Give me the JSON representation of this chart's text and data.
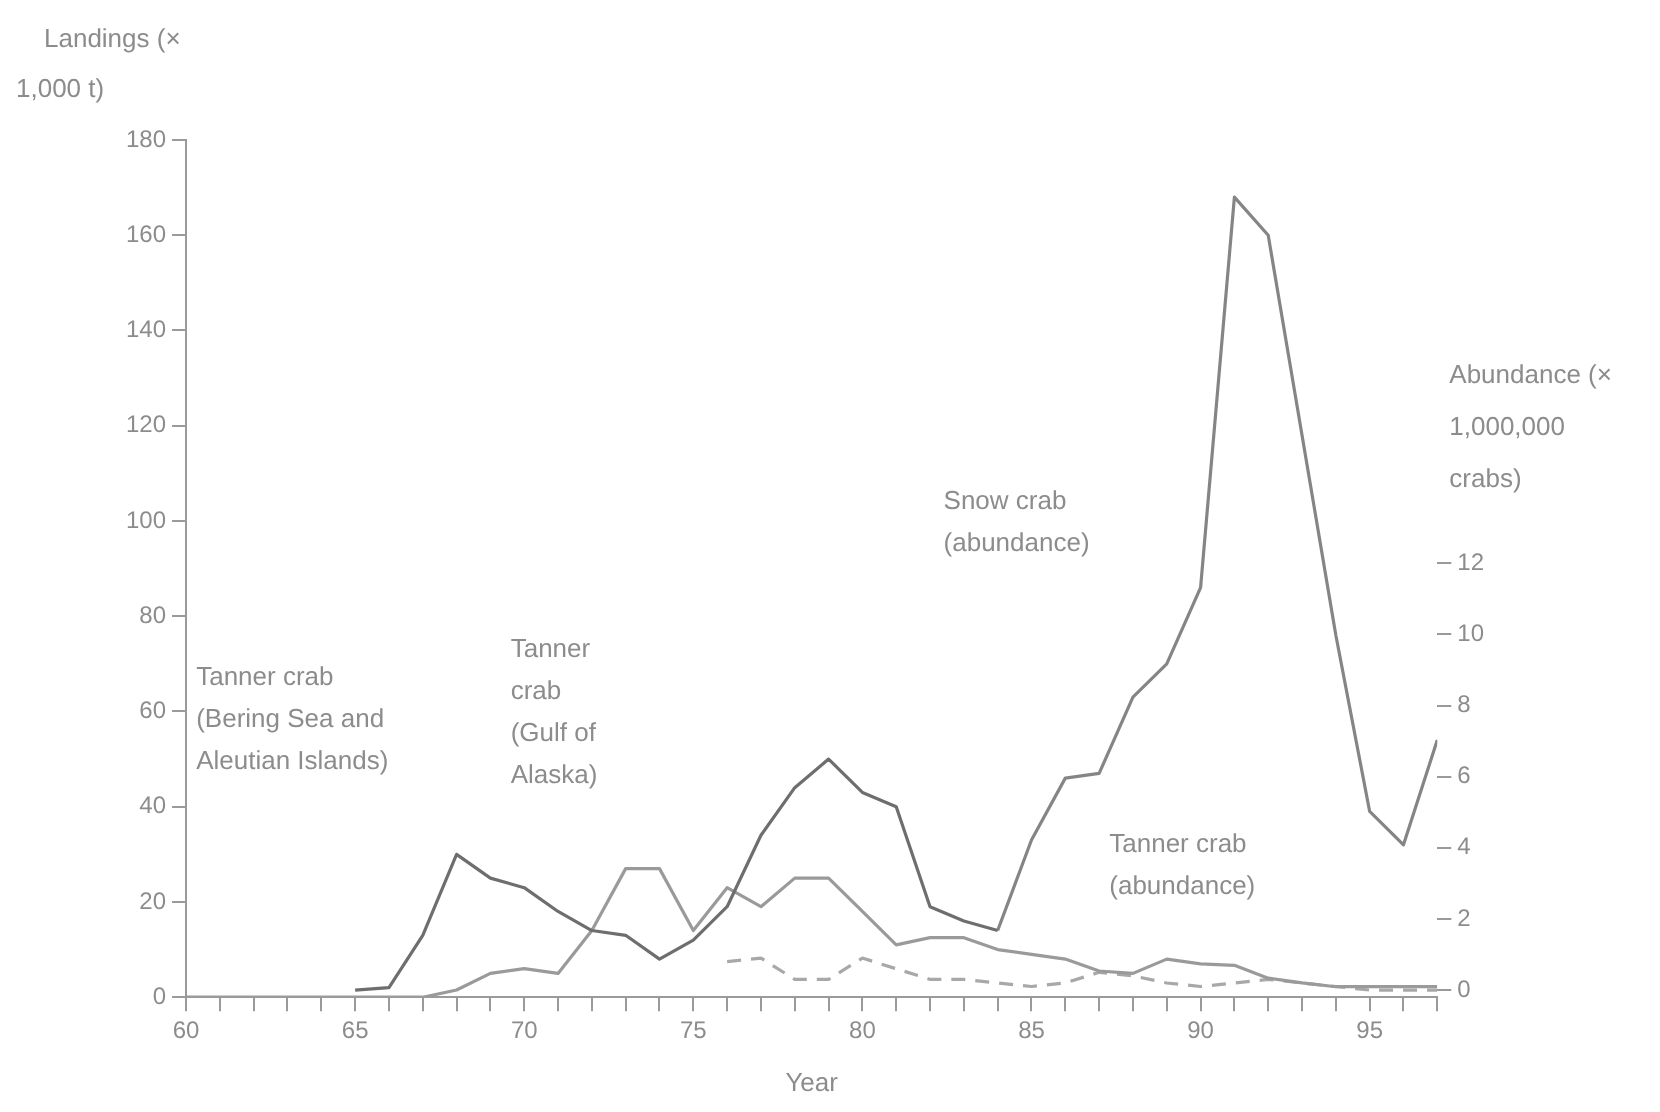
{
  "chart_data": {
    "type": "line",
    "xlabel": "Year",
    "ylabel": "Landings (× 1,000 t)",
    "y2label": "Abundance (× 1,000,000 crabs)",
    "xlim": [
      60,
      97
    ],
    "xticks": [
      60,
      {
        "value": 61,
        "label": null
      },
      {
        "value": 62,
        "label": null
      },
      {
        "value": 63,
        "label": null
      },
      {
        "value": 64,
        "label": null
      },
      65,
      {
        "value": 66,
        "label": null
      },
      {
        "value": 67,
        "label": null
      },
      {
        "value": 68,
        "label": null
      },
      {
        "value": 69,
        "label": null
      },
      70,
      {
        "value": 71,
        "label": null
      },
      {
        "value": 72,
        "label": null
      },
      {
        "value": 73,
        "label": null
      },
      {
        "value": 74,
        "label": null
      },
      75,
      {
        "value": 76,
        "label": null
      },
      {
        "value": 77,
        "label": null
      },
      {
        "value": 78,
        "label": null
      },
      {
        "value": 79,
        "label": null
      },
      80,
      {
        "value": 81,
        "label": null
      },
      {
        "value": 82,
        "label": null
      },
      {
        "value": 83,
        "label": null
      },
      {
        "value": 84,
        "label": null
      },
      85,
      {
        "value": 86,
        "label": null
      },
      {
        "value": 87,
        "label": null
      },
      {
        "value": 88,
        "label": null
      },
      {
        "value": 89,
        "label": null
      },
      90,
      {
        "value": 91,
        "label": null
      },
      {
        "value": 92,
        "label": null
      },
      {
        "value": 93,
        "label": null
      },
      {
        "value": 94,
        "label": null
      },
      95,
      {
        "value": 96,
        "label": null
      },
      {
        "value": 97,
        "label": null
      }
    ],
    "ylim": [
      0,
      180
    ],
    "yticks": [
      0,
      20,
      40,
      60,
      80,
      100,
      120,
      140,
      160,
      180
    ],
    "y2lim": [
      -0.2,
      23.9
    ],
    "y2ticks": [
      0,
      2,
      4,
      6,
      8,
      10,
      12
    ],
    "grid": false,
    "legend": false,
    "marker": "none",
    "series": [
      {
        "color": "#6e6e6e",
        "x": [
          65,
          66,
          67,
          68,
          69,
          70,
          71,
          72,
          73,
          74,
          75,
          76,
          77,
          78,
          79,
          80,
          81,
          82,
          83,
          84
        ],
        "values": [
          1.5,
          2,
          13,
          30,
          25,
          23,
          18,
          14,
          13,
          8,
          12,
          19,
          34,
          44,
          50,
          43,
          40,
          19,
          16,
          14
        ]
      },
      {
        "color": "#858585",
        "x": [
          84,
          85,
          86,
          87,
          88,
          89,
          90,
          91,
          92,
          93,
          94,
          95,
          96,
          97
        ],
        "values": [
          14,
          33,
          46,
          47,
          63,
          70,
          86,
          168,
          160,
          118,
          76,
          39,
          32,
          54
        ]
      },
      {
        "color": "#9a9a9a",
        "x": [
          60,
          61,
          62,
          63,
          64,
          65,
          66,
          67,
          68,
          69,
          70,
          71,
          72,
          73,
          74,
          75,
          76,
          77,
          78,
          79,
          80,
          81,
          82,
          83,
          84,
          85,
          86,
          87,
          88,
          89,
          90,
          91,
          92,
          93,
          94,
          95,
          96,
          97
        ],
        "values": [
          0,
          0,
          0,
          0,
          0,
          0,
          0,
          0,
          1.5,
          5,
          6,
          5,
          14,
          27,
          27,
          14,
          23,
          19,
          25,
          25,
          18,
          11,
          12.5,
          12.5,
          10,
          9,
          8,
          5.5,
          5,
          8,
          7,
          6.7,
          4,
          3,
          2.2,
          2.2,
          2.2,
          2.2
        ]
      },
      {
        "color": "#a8a8a8",
        "axis": "y2",
        "line_style": "dashed",
        "x": [
          76,
          77,
          78,
          79,
          80,
          81,
          82,
          83,
          84,
          85,
          86,
          87,
          88,
          89,
          90,
          91,
          92,
          93,
          94,
          95,
          96,
          97
        ],
        "values": [
          0.8,
          0.9,
          0.3,
          0.3,
          0.9,
          0.6,
          0.3,
          0.3,
          0.2,
          0.1,
          0.2,
          0.5,
          0.4,
          0.2,
          0.1,
          0.2,
          0.3,
          0.2,
          0.1,
          0,
          0,
          0
        ]
      }
    ],
    "annotations": [
      "Tanner crab (Bering Sea and Aleutian Islands)",
      "Tanner crab (Gulf of Alaska)",
      "Snow crab (abundance)",
      "Tanner crab (abundance)"
    ]
  }
}
